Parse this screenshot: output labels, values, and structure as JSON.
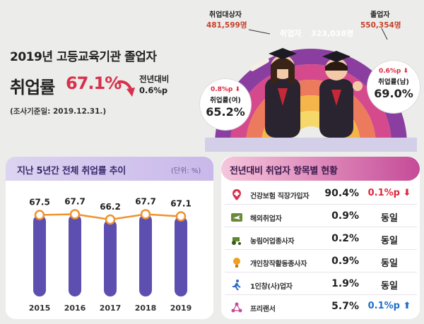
{
  "header": {
    "title": "2019년 고등교육기관 졸업자",
    "rate_label": "취업률",
    "rate_value": "67.1%",
    "yoy_label": "전년대비",
    "yoy_value": "0.6%p",
    "reference_date": "(조사기준일: 2019.12.31.)"
  },
  "rainbow": {
    "target_label": "취업대상자",
    "target_value": "481,599명",
    "employed_label": "취업자",
    "employed_value": "323,038명",
    "graduates_label": "졸업자",
    "graduates_value": "550,354명",
    "female": {
      "change": "0.8%p",
      "label": "취업률(여)",
      "value": "65.2%"
    },
    "male": {
      "change": "0.6%p",
      "label": "취업률(남)",
      "value": "69.0%"
    }
  },
  "left_panel": {
    "title": "지난 5년간 전체 취업률 추이",
    "unit": "(단위: %)"
  },
  "right_panel": {
    "title": "전년대비 취업자 항목별 현황",
    "rows": [
      {
        "icon": "hospital-icon",
        "name": "건강보험 직장가입자",
        "pct": "90.4%",
        "change": "0.1%p",
        "dir": "down"
      },
      {
        "icon": "plane-icon",
        "name": "해외취업자",
        "pct": "0.9%",
        "change": "동일",
        "dir": "same"
      },
      {
        "icon": "tractor-icon",
        "name": "농림어업종사자",
        "pct": "0.2%",
        "change": "동일",
        "dir": "same"
      },
      {
        "icon": "lightbulb-icon",
        "name": "개인창작활동종사자",
        "pct": "0.9%",
        "change": "동일",
        "dir": "same"
      },
      {
        "icon": "person-run-icon",
        "name": "1인창(사)업자",
        "pct": "1.9%",
        "change": "동일",
        "dir": "same"
      },
      {
        "icon": "network-icon",
        "name": "프리랜서",
        "pct": "5.7%",
        "change": "0.1%p",
        "dir": "up"
      }
    ]
  },
  "chart_data": {
    "type": "line",
    "categories": [
      "2015",
      "2016",
      "2017",
      "2018",
      "2019"
    ],
    "values": [
      67.5,
      67.7,
      66.2,
      67.7,
      67.1
    ],
    "data_labels": [
      "67.5",
      "67.7",
      "66.2",
      "67.7",
      "67.1"
    ],
    "xlabel": "",
    "ylabel": "",
    "grid": false,
    "colors": {
      "bar": "#5d4fb0",
      "line": "#f0922e",
      "point_fill": "#ffffff"
    }
  }
}
